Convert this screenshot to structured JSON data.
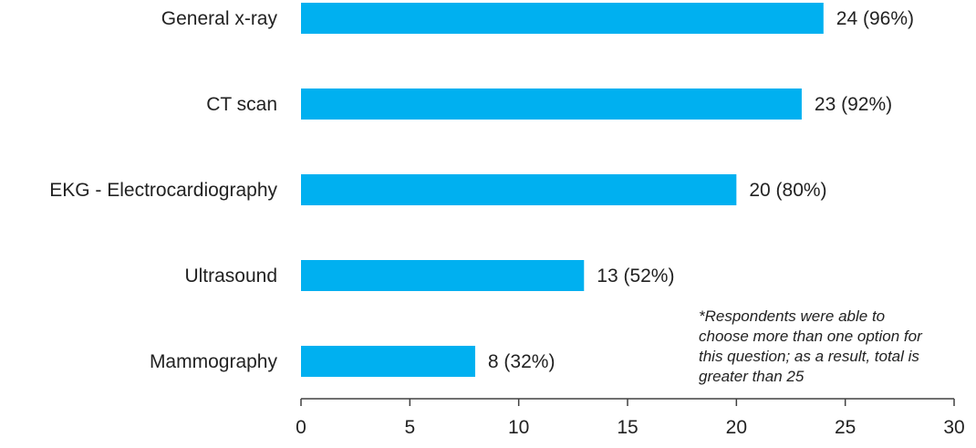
{
  "chart_data": {
    "type": "bar",
    "orientation": "horizontal",
    "categories": [
      "General x-ray",
      "CT scan",
      "EKG - Electrocardiography",
      "Ultrasound",
      "Mammography"
    ],
    "values": [
      24,
      23,
      20,
      13,
      8
    ],
    "data_labels": [
      "24 (96%)",
      "23 (92%)",
      "20 (80%)",
      "13 (52%)",
      "8 (32%)"
    ],
    "xlim": [
      0,
      30
    ],
    "xticks": [
      0,
      5,
      10,
      15,
      20,
      25,
      30
    ],
    "grid": false,
    "bar_color": "#00b0f0",
    "annotation_lines": [
      "*Respondents were able to",
      "choose more than one option for",
      "this question; as a result, total is",
      "greater than 25"
    ]
  }
}
